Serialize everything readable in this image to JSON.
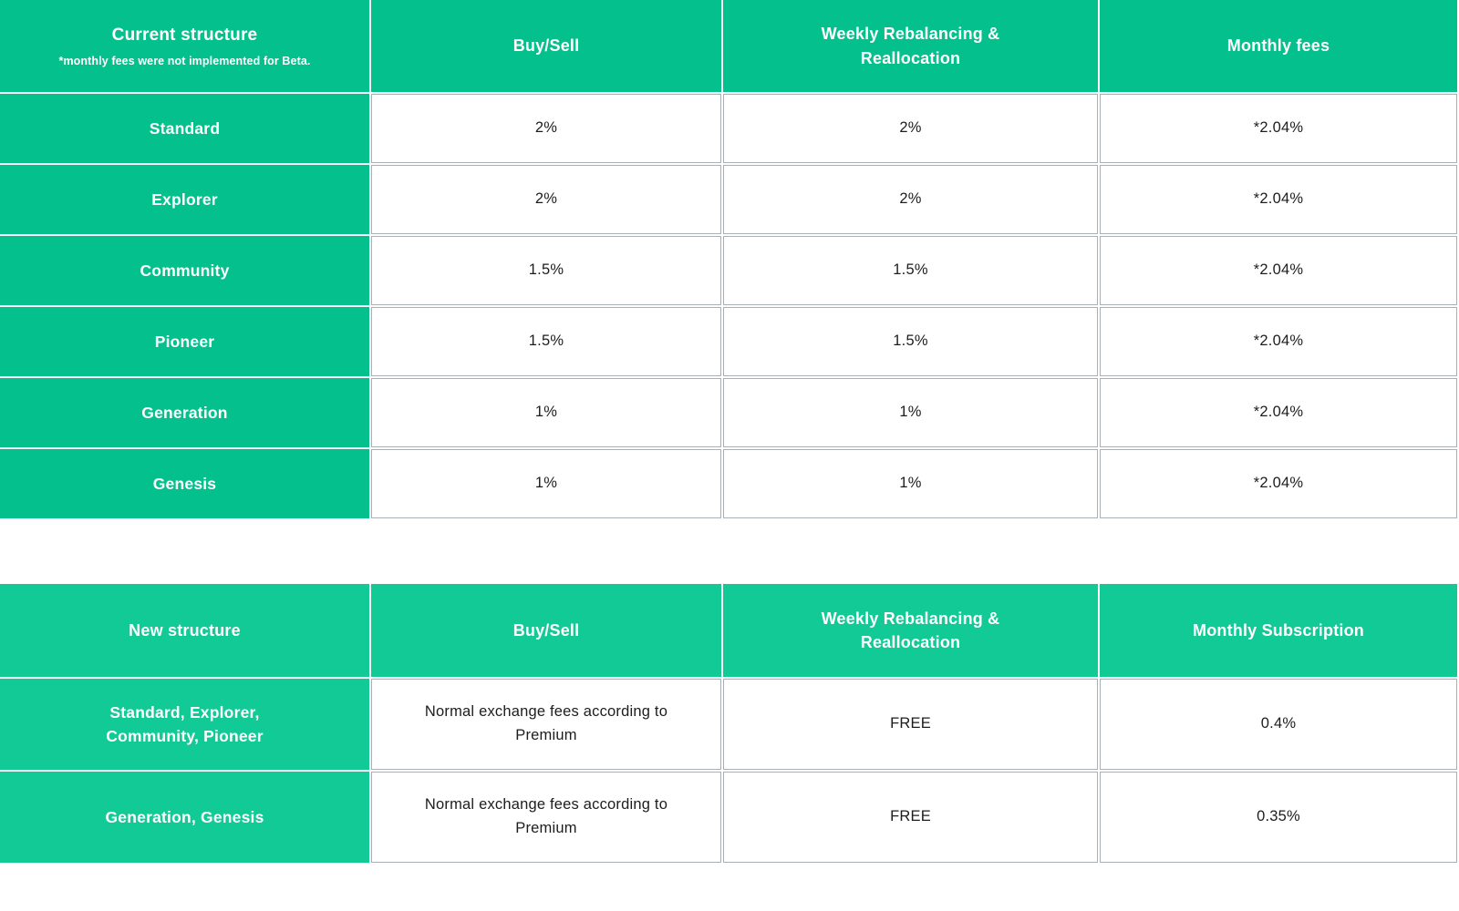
{
  "colors": {
    "green_current_table": "#04c08d",
    "green_new_table": "#11ca96",
    "cell_border_gray": "#a9b1b6",
    "value_text": "#1d1d1d",
    "header_text": "#ffffff"
  },
  "current_table": {
    "header": {
      "col1_title": "Current structure",
      "col1_note": "*monthly fees were not implemented for Beta.",
      "col2": "Buy/Sell",
      "col3": "Weekly Rebalancing & Reallocation",
      "col4": "Monthly fees"
    },
    "rows": [
      {
        "tier": "Standard",
        "buy_sell": "2%",
        "rebalancing": "2%",
        "monthly": "*2.04%"
      },
      {
        "tier": "Explorer",
        "buy_sell": "2%",
        "rebalancing": "2%",
        "monthly": "*2.04%"
      },
      {
        "tier": "Community",
        "buy_sell": "1.5%",
        "rebalancing": "1.5%",
        "monthly": "*2.04%"
      },
      {
        "tier": "Pioneer",
        "buy_sell": "1.5%",
        "rebalancing": "1.5%",
        "monthly": "*2.04%"
      },
      {
        "tier": "Generation",
        "buy_sell": "1%",
        "rebalancing": "1%",
        "monthly": "*2.04%"
      },
      {
        "tier": "Genesis",
        "buy_sell": "1%",
        "rebalancing": "1%",
        "monthly": "*2.04%"
      }
    ]
  },
  "new_table": {
    "header": {
      "col1": "New structure",
      "col2": "Buy/Sell",
      "col3": "Weekly Rebalancing & Reallocation",
      "col4": "Monthly Subscription"
    },
    "rows": [
      {
        "tier": "Standard, Explorer, Community, Pioneer",
        "buy_sell": "Normal exchange fees according to Premium",
        "rebalancing": "FREE",
        "monthly": "0.4%"
      },
      {
        "tier": "Generation, Genesis",
        "buy_sell": "Normal exchange fees according to Premium",
        "rebalancing": "FREE",
        "monthly": "0.35%"
      }
    ]
  }
}
